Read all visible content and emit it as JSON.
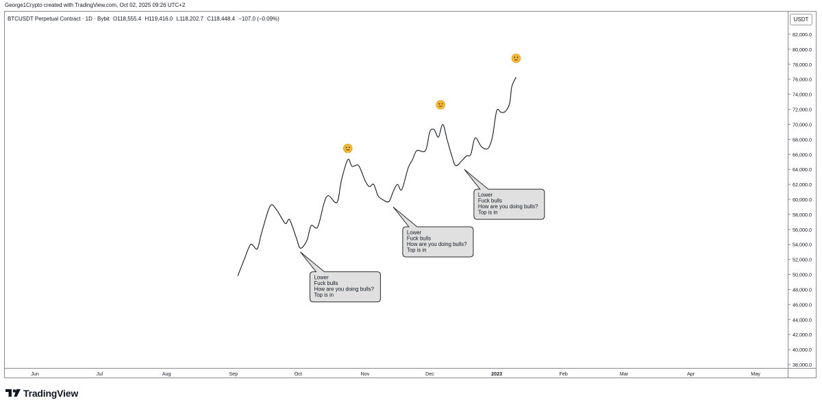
{
  "header": {
    "credit": "George1Crypto created with TradingView.com, Oct 02, 2025 09:26 UTC+2",
    "symbol": "BTCUSDT Perpetual Contract · 1D · Bybit",
    "open": "O118,555.4",
    "high": "H119,416.0",
    "low": "L118,202.7",
    "close": "C118,448.4",
    "change": "−107.0 (−0.09%)"
  },
  "currency": "USDT",
  "brand": {
    "name": "TradingView",
    "icon": "tradingview-logo-icon"
  },
  "colors": {
    "line": "#131722",
    "callout_fill": "#e0e0e0",
    "emoji": "#f5b833",
    "grid_border": "#8a8a8a"
  },
  "chart_data": {
    "type": "line",
    "y_ticks": [
      "82,000.0",
      "80,000.0",
      "78,000.0",
      "76,000.0",
      "74,000.0",
      "72,000.0",
      "70,000.0",
      "68,000.0",
      "66,000.0",
      "64,000.0",
      "62,000.0",
      "60,000.0",
      "58,000.0",
      "56,000.0",
      "54,000.0",
      "52,000.0",
      "50,000.0",
      "48,000.0",
      "46,000.0",
      "44,000.0",
      "42,000.0",
      "40,000.0",
      "38,000.0"
    ],
    "ylim": [
      38000,
      82000
    ],
    "x_ticks": [
      {
        "label": "Jun",
        "day": 0
      },
      {
        "label": "Jul",
        "day": 30
      },
      {
        "label": "Aug",
        "day": 61
      },
      {
        "label": "Sep",
        "day": 92
      },
      {
        "label": "Oct",
        "day": 122
      },
      {
        "label": "Nov",
        "day": 153
      },
      {
        "label": "Dec",
        "day": 183
      },
      {
        "label": "2023",
        "day": 214
      },
      {
        "label": "Feb",
        "day": 245
      },
      {
        "label": "Mar",
        "day": 273
      },
      {
        "label": "Apr",
        "day": 304
      },
      {
        "label": "May",
        "day": 334
      }
    ],
    "series": [
      {
        "points": [
          [
            94,
            49800
          ],
          [
            97,
            52000
          ],
          [
            100,
            54000
          ],
          [
            103,
            53400
          ],
          [
            105,
            55500
          ],
          [
            109,
            59100
          ],
          [
            112,
            58600
          ],
          [
            116,
            56800
          ],
          [
            118,
            57300
          ],
          [
            121,
            55000
          ],
          [
            123,
            53500
          ],
          [
            126,
            54500
          ],
          [
            128,
            56500
          ],
          [
            131,
            56300
          ],
          [
            134,
            59500
          ],
          [
            136,
            60500
          ],
          [
            140,
            59600
          ],
          [
            142,
            62500
          ],
          [
            145,
            65300
          ],
          [
            147,
            64400
          ],
          [
            150,
            64500
          ],
          [
            153,
            62500
          ],
          [
            155,
            61700
          ],
          [
            157,
            62000
          ],
          [
            159,
            60500
          ],
          [
            161,
            60000
          ],
          [
            164,
            59700
          ],
          [
            166,
            61000
          ],
          [
            168,
            62000
          ],
          [
            170,
            61300
          ],
          [
            173,
            64200
          ],
          [
            175,
            65300
          ],
          [
            177,
            66500
          ],
          [
            181,
            66500
          ],
          [
            183,
            69000
          ],
          [
            185,
            69300
          ],
          [
            187,
            68300
          ],
          [
            189,
            70000
          ],
          [
            191,
            68000
          ],
          [
            193,
            66000
          ],
          [
            195,
            64500
          ],
          [
            198,
            65200
          ],
          [
            200,
            65800
          ],
          [
            202,
            66000
          ],
          [
            204,
            68200
          ],
          [
            207,
            67000
          ],
          [
            210,
            66800
          ],
          [
            212,
            68300
          ],
          [
            214,
            71800
          ],
          [
            216,
            71600
          ],
          [
            218,
            71700
          ],
          [
            220,
            72800
          ],
          [
            221,
            75000
          ],
          [
            223,
            76300
          ]
        ]
      }
    ],
    "annotations": [
      {
        "type": "callout",
        "anchor": [
          123,
          53000
        ],
        "lines": [
          "Lower",
          "Fuck bulls",
          "How are you doing bulls?",
          "Top is in"
        ]
      },
      {
        "type": "callout",
        "anchor": [
          166,
          59000
        ],
        "lines": [
          "Lower",
          "Fuck bulls",
          "How are you doing bulls?",
          "Top is in"
        ]
      },
      {
        "type": "callout",
        "anchor": [
          199,
          64000
        ],
        "lines": [
          "Lower",
          "Fuck bulls",
          "How are you doing bulls?",
          "Top is in"
        ]
      },
      {
        "type": "emoji",
        "symbol": "neutral-face",
        "at": [
          145,
          66800
        ]
      },
      {
        "type": "emoji",
        "symbol": "neutral-face",
        "at": [
          188,
          72600
        ]
      },
      {
        "type": "emoji",
        "symbol": "neutral-face",
        "at": [
          223,
          78800
        ]
      }
    ]
  }
}
